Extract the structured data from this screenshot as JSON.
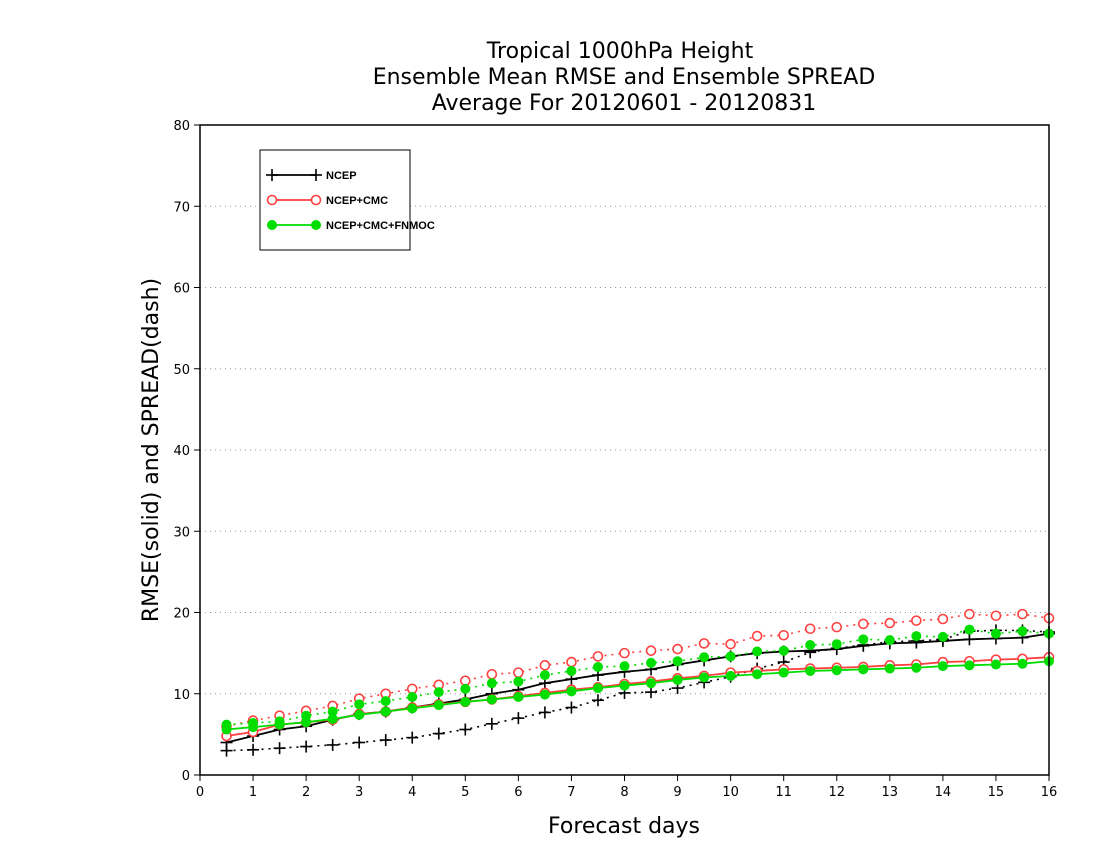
{
  "chart_data": {
    "type": "line",
    "title_lines": [
      "Tropical 1000hPa Height",
      "Ensemble Mean RMSE and Ensemble SPREAD",
      "Average For 20120601 - 20120831"
    ],
    "xlabel": "Forecast days",
    "ylabel": "RMSE(solid) and SPREAD(dash)",
    "xlim": [
      0,
      16
    ],
    "ylim": [
      0,
      80
    ],
    "x_ticks": [
      0,
      1,
      2,
      3,
      4,
      5,
      6,
      7,
      8,
      9,
      10,
      11,
      12,
      13,
      14,
      15,
      16
    ],
    "y_ticks": [
      0,
      10,
      20,
      30,
      40,
      50,
      60,
      70,
      80
    ],
    "grid": "horizontal dotted",
    "legend_position": "top-left",
    "x": [
      0.5,
      1,
      1.5,
      2,
      2.5,
      3,
      3.5,
      4,
      4.5,
      5,
      5.5,
      6,
      6.5,
      7,
      7.5,
      8,
      8.5,
      9,
      9.5,
      10,
      10.5,
      11,
      11.5,
      12,
      12.5,
      13,
      13.5,
      14,
      14.5,
      15,
      15.5,
      16
    ],
    "series": [
      {
        "name": "NCEP",
        "color": "#000000",
        "marker": "plus",
        "rmse": [
          4.0,
          4.8,
          5.6,
          6.0,
          6.8,
          7.5,
          7.8,
          8.3,
          8.8,
          9.3,
          10.0,
          10.5,
          11.3,
          11.8,
          12.3,
          12.7,
          13.0,
          13.6,
          14.1,
          14.6,
          15.0,
          15.2,
          15.3,
          15.5,
          15.9,
          16.2,
          16.3,
          16.5,
          16.7,
          16.8,
          16.9,
          17.4
        ],
        "spread": [
          3.0,
          3.1,
          3.3,
          3.5,
          3.7,
          4.0,
          4.3,
          4.6,
          5.1,
          5.6,
          6.3,
          7.0,
          7.7,
          8.3,
          9.2,
          10.1,
          10.2,
          10.7,
          11.4,
          12.1,
          13.1,
          13.9,
          15.1,
          15.6,
          16.0,
          16.4,
          16.5,
          16.7,
          17.7,
          17.8,
          17.8,
          17.6
        ]
      },
      {
        "name": "NCEP+CMC",
        "color": "#ff4040",
        "marker": "open-circle",
        "rmse": [
          4.8,
          5.3,
          6.2,
          6.5,
          6.8,
          7.5,
          7.8,
          8.3,
          8.7,
          9.0,
          9.3,
          9.7,
          10.1,
          10.5,
          10.8,
          11.2,
          11.5,
          11.9,
          12.2,
          12.6,
          12.8,
          13.0,
          13.1,
          13.2,
          13.3,
          13.5,
          13.6,
          13.9,
          14.0,
          14.2,
          14.3,
          14.5
        ],
        "spread": [
          6.0,
          6.7,
          7.3,
          7.9,
          8.5,
          9.4,
          10.0,
          10.6,
          11.1,
          11.6,
          12.4,
          12.6,
          13.5,
          13.9,
          14.6,
          15.0,
          15.3,
          15.5,
          16.2,
          16.1,
          17.1,
          17.2,
          18.0,
          18.2,
          18.6,
          18.7,
          19.0,
          19.2,
          19.8,
          19.6,
          19.8,
          19.3
        ]
      },
      {
        "name": "NCEP+CMC+FNMOC",
        "color": "#00dd00",
        "marker": "filled-circle",
        "rmse": [
          5.6,
          5.9,
          6.2,
          6.5,
          6.9,
          7.4,
          7.8,
          8.2,
          8.6,
          9.0,
          9.3,
          9.6,
          9.9,
          10.3,
          10.7,
          11.0,
          11.3,
          11.7,
          12.0,
          12.2,
          12.4,
          12.6,
          12.8,
          12.9,
          13.0,
          13.1,
          13.2,
          13.4,
          13.5,
          13.6,
          13.7,
          14.0
        ],
        "spread": [
          6.2,
          6.4,
          6.6,
          7.3,
          7.8,
          8.7,
          9.1,
          9.6,
          10.2,
          10.6,
          11.3,
          11.5,
          12.3,
          12.8,
          13.3,
          13.4,
          13.8,
          14.0,
          14.5,
          14.6,
          15.2,
          15.3,
          16.0,
          16.1,
          16.7,
          16.6,
          17.1,
          17.0,
          17.9,
          17.4,
          17.7,
          17.4
        ]
      }
    ]
  }
}
